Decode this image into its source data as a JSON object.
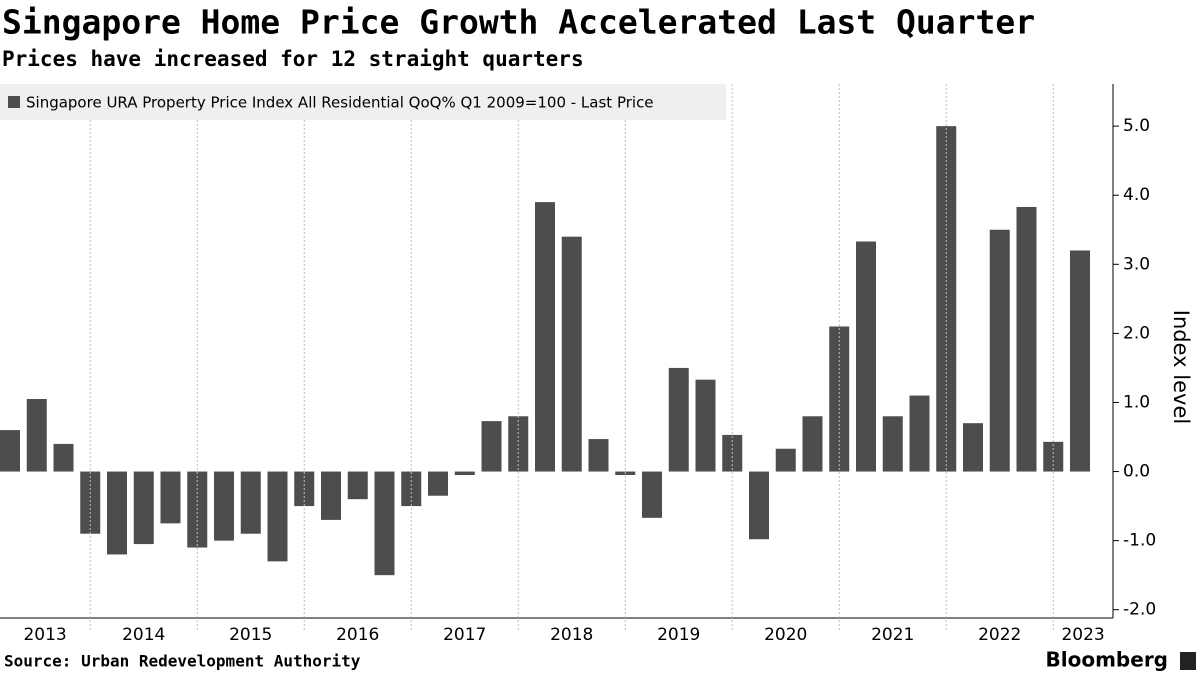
{
  "chart_data": {
    "type": "bar",
    "title": "Singapore Home Price Growth Accelerated Last Quarter",
    "subtitle": "Prices have increased for 12 straight quarters",
    "series": [
      {
        "name": "Singapore URA Property Price Index All Residential QoQ% Q1 2009=100 - Last Price",
        "color": "#4d4d4d",
        "values": [
          0.6,
          1.05,
          0.4,
          -0.9,
          -1.2,
          -1.05,
          -0.75,
          -1.1,
          -1.0,
          -0.9,
          -1.3,
          -0.5,
          -0.7,
          -0.4,
          -1.5,
          -0.5,
          -0.35,
          -0.05,
          0.73,
          0.8,
          3.9,
          3.4,
          0.47,
          -0.05,
          -0.67,
          1.5,
          1.33,
          0.53,
          -0.98,
          0.33,
          0.8,
          2.1,
          3.33,
          0.8,
          1.1,
          5.0,
          0.7,
          3.5,
          3.83,
          0.43,
          3.2
        ]
      }
    ],
    "year_labels": [
      "2013",
      "2014",
      "2015",
      "2016",
      "2017",
      "2018",
      "2019",
      "2020",
      "2021",
      "2022",
      "2023"
    ],
    "y_axis_label": "Index level",
    "ylim": [
      -2.12,
      5.61
    ],
    "yticks": [
      {
        "value": -2,
        "label": "-2.0"
      },
      {
        "value": -1,
        "label": "-1.0"
      },
      {
        "value": 0,
        "label": "0.0"
      },
      {
        "value": 1,
        "label": "1.0"
      },
      {
        "value": 2,
        "label": "2.0"
      },
      {
        "value": 3,
        "label": "3.0"
      },
      {
        "value": 4,
        "label": "4.0"
      },
      {
        "value": 5,
        "label": "5.0"
      }
    ],
    "source": "Source: Urban Redevelopment Authority",
    "brand": "Bloomberg"
  }
}
